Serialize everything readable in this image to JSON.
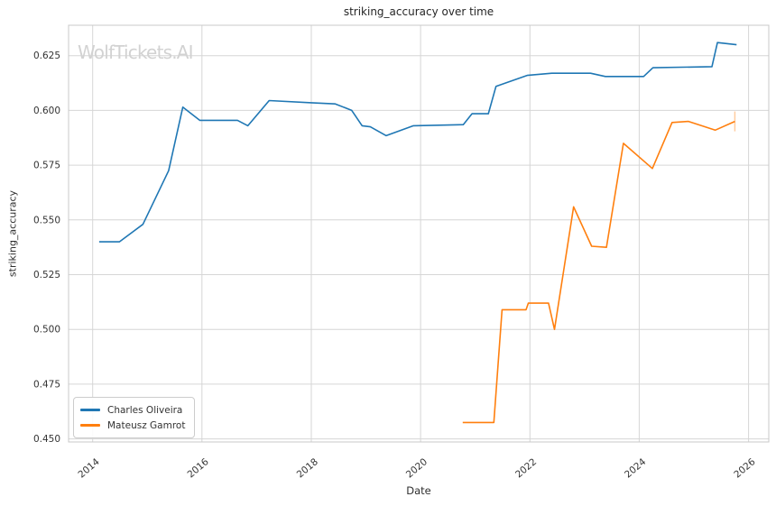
{
  "watermark": "WolfTickets.AI",
  "chart_data": {
    "type": "line",
    "title": "striking_accuracy over time",
    "xlabel": "Date",
    "ylabel": "striking_accuracy",
    "x_unit": "decimal_year",
    "xlim": [
      2013.56,
      2026.37
    ],
    "ylim": [
      0.4486,
      0.6389
    ],
    "grid": true,
    "legend_position": "lower-left",
    "x_ticks": [
      {
        "value": 2014,
        "label": "2014"
      },
      {
        "value": 2016,
        "label": "2016"
      },
      {
        "value": 2018,
        "label": "2018"
      },
      {
        "value": 2020,
        "label": "2020"
      },
      {
        "value": 2022,
        "label": "2022"
      },
      {
        "value": 2024,
        "label": "2024"
      },
      {
        "value": 2026,
        "label": "2026"
      }
    ],
    "y_ticks": [
      {
        "value": 0.45,
        "label": "0.450"
      },
      {
        "value": 0.475,
        "label": "0.475"
      },
      {
        "value": 0.5,
        "label": "0.500"
      },
      {
        "value": 0.525,
        "label": "0.525"
      },
      {
        "value": 0.55,
        "label": "0.550"
      },
      {
        "value": 0.575,
        "label": "0.575"
      },
      {
        "value": 0.6,
        "label": "0.600"
      },
      {
        "value": 0.625,
        "label": "0.625"
      }
    ],
    "series": [
      {
        "name": "Charles Oliveira",
        "color": "#1f77b4",
        "points": [
          [
            2014.12,
            0.54
          ],
          [
            2014.49,
            0.54
          ],
          [
            2014.92,
            0.548
          ],
          [
            2015.39,
            0.5725
          ],
          [
            2015.65,
            0.6015
          ],
          [
            2015.96,
            0.5955
          ],
          [
            2016.65,
            0.5955
          ],
          [
            2016.84,
            0.593
          ],
          [
            2017.23,
            0.6045
          ],
          [
            2018.0,
            0.6035
          ],
          [
            2018.44,
            0.603
          ],
          [
            2018.74,
            0.6
          ],
          [
            2018.93,
            0.593
          ],
          [
            2019.08,
            0.5925
          ],
          [
            2019.37,
            0.5885
          ],
          [
            2019.87,
            0.593
          ],
          [
            2020.78,
            0.5935
          ],
          [
            2020.94,
            0.5985
          ],
          [
            2021.24,
            0.5985
          ],
          [
            2021.38,
            0.611
          ],
          [
            2021.95,
            0.616
          ],
          [
            2022.4,
            0.617
          ],
          [
            2023.11,
            0.617
          ],
          [
            2023.38,
            0.6155
          ],
          [
            2024.08,
            0.6155
          ],
          [
            2024.25,
            0.6195
          ],
          [
            2025.33,
            0.62
          ],
          [
            2025.43,
            0.631
          ],
          [
            2025.78,
            0.63
          ]
        ]
      },
      {
        "name": "Mateusz Gamrot",
        "color": "#ff7f0e",
        "end_marker": "vertical-tick",
        "points": [
          [
            2020.77,
            0.4575
          ],
          [
            2021.34,
            0.4575
          ],
          [
            2021.49,
            0.509
          ],
          [
            2021.93,
            0.509
          ],
          [
            2021.97,
            0.512
          ],
          [
            2022.34,
            0.512
          ],
          [
            2022.45,
            0.5
          ],
          [
            2022.8,
            0.556
          ],
          [
            2023.13,
            0.538
          ],
          [
            2023.4,
            0.5375
          ],
          [
            2023.71,
            0.585
          ],
          [
            2024.24,
            0.5735
          ],
          [
            2024.6,
            0.5945
          ],
          [
            2024.9,
            0.595
          ],
          [
            2025.39,
            0.591
          ],
          [
            2025.75,
            0.595
          ]
        ]
      }
    ]
  }
}
